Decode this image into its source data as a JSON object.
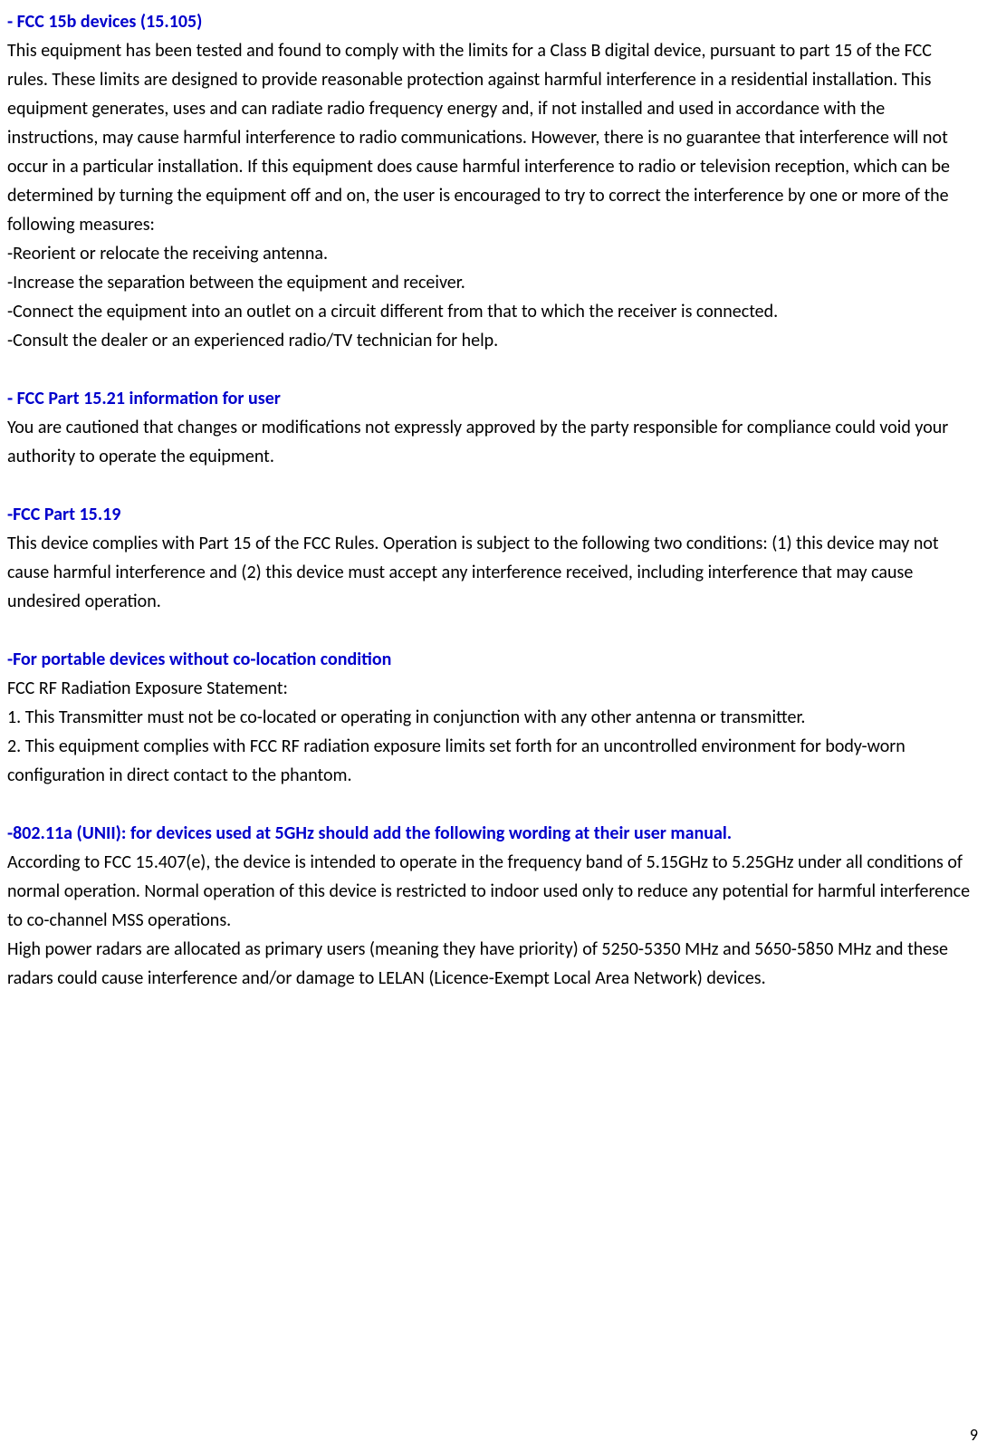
{
  "section1": {
    "heading": "- FCC 15b devices (15.105)",
    "body1": "This equipment has been tested and found to comply with the limits for a Class B digital device, pursuant to part 15 of the FCC rules. These limits are designed to provide reasonable protection against harmful interference in a residential installation. This equipment generates, uses and can radiate radio frequency energy and, if not installed and used in accordance with the instructions, may cause harmful interference to radio communications. However, there is no guarantee that interference will not occur in a particular installation. If this equipment does cause harmful interference to radio or television reception, which can be determined by turning the equipment off and on, the user is encouraged to try to correct the interference by one or more of the",
    "body2": "following measures:",
    "bullet1": "-Reorient or relocate the receiving antenna.",
    "bullet2": "-Increase the separation between the equipment and receiver.",
    "bullet3": "-Connect the equipment into an outlet on a circuit different from that to which the receiver is connected.",
    "bullet4": "-Consult the dealer or an experienced radio/TV technician for help."
  },
  "section2": {
    "heading": "- FCC Part 15.21 information for user",
    "body": "You are cautioned that changes or modifications not expressly approved by the party responsible for compliance could void your authority to operate the equipment."
  },
  "section3": {
    "heading": "-FCC Part 15.19",
    "body": "This device complies with Part 15 of the FCC Rules. Operation is subject to the following two conditions: (1) this device may not cause harmful interference and (2) this device must accept any interference received, including interference that may cause undesired operation."
  },
  "section4": {
    "heading": "-For portable devices without co-location condition",
    "line1": "FCC RF Radiation Exposure Statement:",
    "line2": "1. This Transmitter must not be co-located or operating in conjunction with any other antenna or transmitter.",
    "line3": "2. This equipment complies with FCC RF radiation exposure limits set forth for an uncontrolled environment for body-worn configuration in direct contact to the phantom."
  },
  "section5": {
    "heading": "-802.11a (UNII): for devices used at 5GHz should add the following wording at their user manual.",
    "body1": "According to FCC 15.407(e), the device is intended to operate in the frequency band of 5.15GHz to 5.25GHz under all conditions of normal operation. Normal operation of this device is restricted to indoor used only to reduce any potential for harmful interference to co-channel MSS operations.",
    "body2": "High power radars are allocated as primary users (meaning they have priority) of 5250-5350 MHz and 5650-5850 MHz and these radars could cause interference and/or damage to LELAN (Licence-Exempt Local Area Network) devices."
  },
  "page_number": "9"
}
